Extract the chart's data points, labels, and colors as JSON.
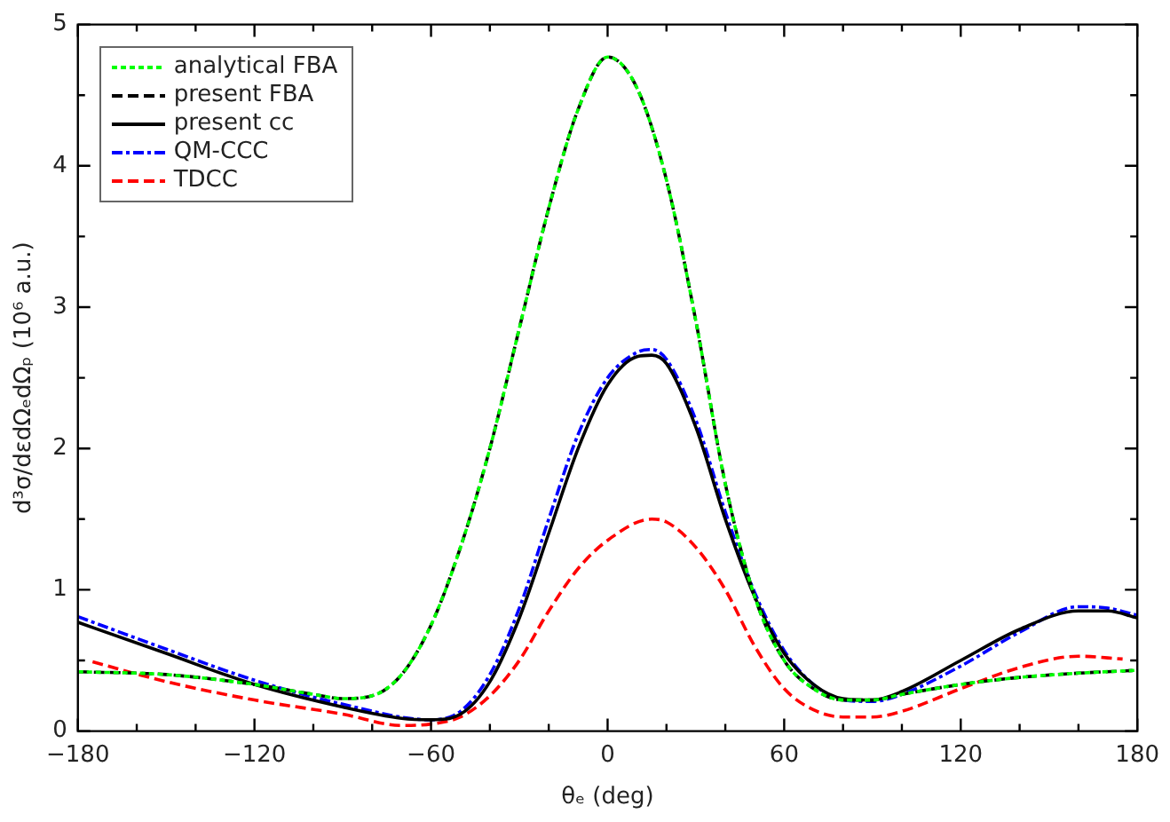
{
  "chart_data": {
    "type": "line",
    "xlabel": "θₑ (deg)",
    "ylabel": "d³σ/dεdΩₑdΩₚ (10⁶ a.u.)",
    "xlim": [
      -180,
      180
    ],
    "ylim": [
      0,
      5
    ],
    "xticks": [
      -180,
      {
        "value": -160,
        "label": null
      },
      {
        "value": -140,
        "label": null
      },
      -120,
      {
        "value": -100,
        "label": null
      },
      {
        "value": -80,
        "label": null
      },
      -60,
      {
        "value": -40,
        "label": null
      },
      {
        "value": -20,
        "label": null
      },
      0,
      {
        "value": 20,
        "label": null
      },
      {
        "value": 40,
        "label": null
      },
      60,
      {
        "value": 80,
        "label": null
      },
      {
        "value": 100,
        "label": null
      },
      120,
      {
        "value": 140,
        "label": null
      },
      {
        "value": 160,
        "label": null
      },
      180
    ],
    "yticks": [
      0,
      {
        "value": 0.5,
        "label": null
      },
      1,
      {
        "value": 1.5,
        "label": null
      },
      2,
      {
        "value": 2.5,
        "label": null
      },
      3,
      {
        "value": 3.5,
        "label": null
      },
      4,
      {
        "value": 4.5,
        "label": null
      },
      5
    ],
    "grid": false,
    "legend": "top left",
    "marker": "none",
    "x": [
      -180,
      -150,
      -120,
      -100,
      -90,
      -80,
      -70,
      -60,
      -50,
      -40,
      -30,
      -20,
      -10,
      0,
      10,
      20,
      30,
      40,
      50,
      60,
      70,
      80,
      90,
      100,
      120,
      140,
      160,
      180
    ],
    "series": [
      {
        "name": "analytical FBA",
        "color": "#00ff00",
        "line_style": "dotted",
        "values": [
          0.42,
          0.4,
          0.33,
          0.26,
          0.23,
          0.25,
          0.4,
          0.75,
          1.3,
          2.0,
          2.85,
          3.7,
          4.4,
          4.77,
          4.55,
          3.9,
          2.9,
          1.75,
          0.95,
          0.5,
          0.3,
          0.22,
          0.22,
          0.26,
          0.33,
          0.38,
          0.41,
          0.43
        ]
      },
      {
        "name": "present FBA",
        "color": "#000000",
        "line_style": "dashed",
        "values": [
          0.42,
          0.4,
          0.33,
          0.26,
          0.23,
          0.25,
          0.4,
          0.75,
          1.3,
          2.0,
          2.85,
          3.7,
          4.4,
          4.77,
          4.55,
          3.9,
          2.9,
          1.75,
          0.95,
          0.5,
          0.3,
          0.22,
          0.22,
          0.26,
          0.33,
          0.38,
          0.41,
          0.43
        ]
      },
      {
        "name": "present cc",
        "color": "#000000",
        "line_style": "solid",
        "x": [
          -180,
          -150,
          -120,
          -90,
          -70,
          -60,
          -50,
          -40,
          -30,
          -20,
          -10,
          0,
          10,
          15,
          20,
          30,
          40,
          50,
          60,
          70,
          80,
          90,
          100,
          120,
          140,
          160,
          170,
          180
        ],
        "values": [
          0.77,
          0.55,
          0.33,
          0.17,
          0.09,
          0.08,
          0.12,
          0.35,
          0.8,
          1.4,
          2.0,
          2.45,
          2.65,
          2.66,
          2.6,
          2.15,
          1.5,
          0.95,
          0.55,
          0.33,
          0.23,
          0.22,
          0.28,
          0.5,
          0.72,
          0.85,
          0.85,
          0.8
        ]
      },
      {
        "name": "QM-CCC",
        "color": "#0000ff",
        "line_style": "dashdot",
        "x": [
          -180,
          -150,
          -120,
          -90,
          -60,
          -50,
          -40,
          -30,
          -20,
          -10,
          0,
          10,
          15,
          20,
          30,
          40,
          50,
          60,
          70,
          80,
          90,
          100,
          120,
          140,
          160,
          170,
          180
        ],
        "values": [
          0.81,
          0.58,
          0.36,
          0.19,
          0.08,
          0.14,
          0.4,
          0.87,
          1.5,
          2.1,
          2.5,
          2.68,
          2.7,
          2.63,
          2.2,
          1.55,
          0.98,
          0.57,
          0.33,
          0.22,
          0.21,
          0.26,
          0.46,
          0.7,
          0.88,
          0.87,
          0.82
        ]
      },
      {
        "name": "TDCC",
        "color": "#ff0000",
        "line_style": "dashed",
        "x": [
          -175,
          -150,
          -120,
          -90,
          -70,
          -60,
          -50,
          -40,
          -30,
          -20,
          -10,
          0,
          15,
          20,
          30,
          40,
          50,
          60,
          70,
          80,
          90,
          100,
          120,
          140,
          160,
          175
        ],
        "values": [
          0.49,
          0.35,
          0.22,
          0.12,
          0.04,
          0.05,
          0.1,
          0.25,
          0.5,
          0.85,
          1.15,
          1.35,
          1.5,
          1.48,
          1.3,
          1.0,
          0.6,
          0.3,
          0.15,
          0.1,
          0.1,
          0.14,
          0.3,
          0.45,
          0.53,
          0.51
        ]
      }
    ]
  }
}
